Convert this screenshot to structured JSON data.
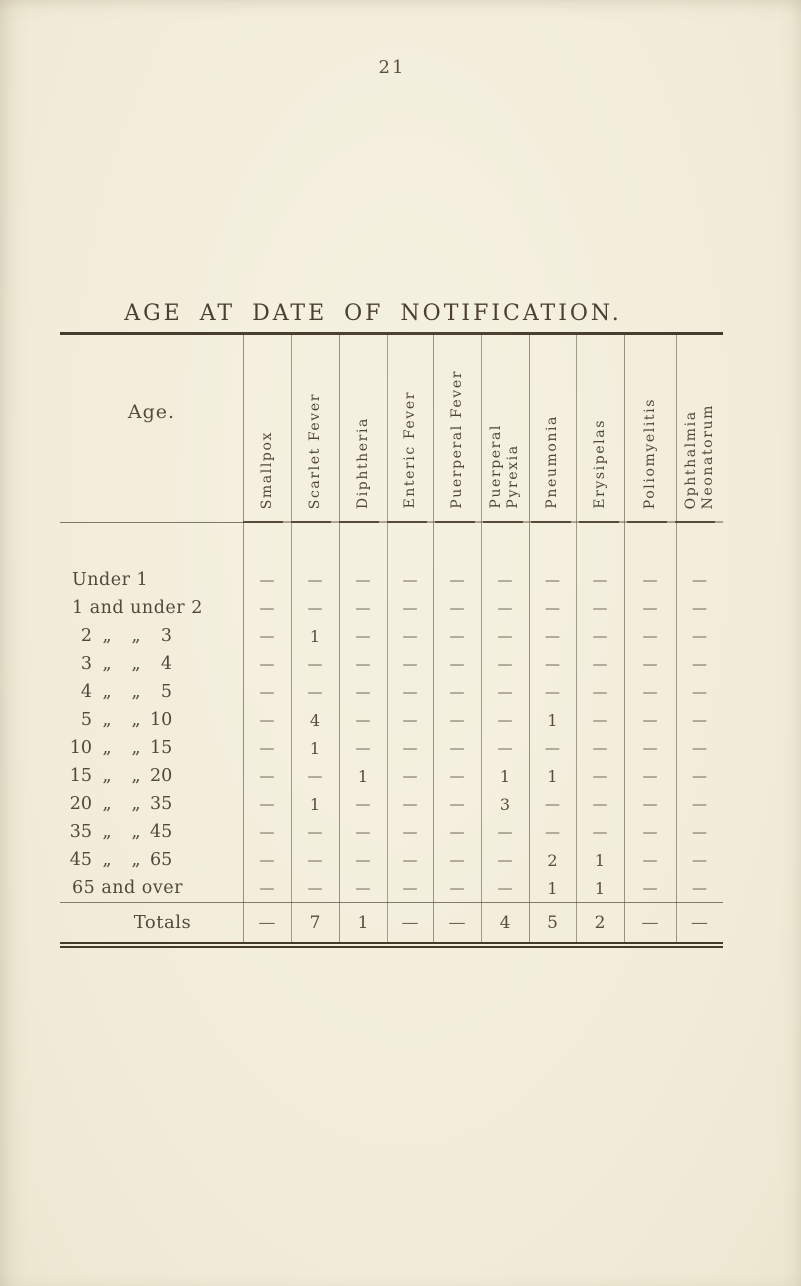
{
  "page_number": "21",
  "title": "AGE AT DATE OF NOTIFICATION.",
  "colors": {
    "paper": "#f2edda",
    "ink": "#4e4336",
    "rule": "#443a2c"
  },
  "table": {
    "age_header": "Age.",
    "dash": "—",
    "columns": [
      {
        "id": "smallpox",
        "lines": [
          "Smallpox"
        ]
      },
      {
        "id": "scarlet-fever",
        "lines": [
          "Scarlet Fever"
        ]
      },
      {
        "id": "diphtheria",
        "lines": [
          "Diphtheria"
        ]
      },
      {
        "id": "enteric-fever",
        "lines": [
          "Enteric Fever"
        ]
      },
      {
        "id": "puerperal-fever",
        "lines": [
          "Puerperal Fever"
        ]
      },
      {
        "id": "puerperal-pyrexia",
        "lines": [
          "Puerperal",
          "Pyrexia"
        ]
      },
      {
        "id": "pneumonia",
        "lines": [
          "Pneumonia"
        ]
      },
      {
        "id": "erysipelas",
        "lines": [
          "Erysipelas"
        ]
      },
      {
        "id": "poliomyelitis",
        "lines": [
          "Poliomyelitis"
        ]
      },
      {
        "id": "ophthalmia-neonatorum",
        "lines": [
          "Ophthalmia",
          "Neonatorum"
        ]
      }
    ],
    "rows": [
      {
        "age": [
          "Under 1"
        ],
        "values": [
          "—",
          "—",
          "—",
          "—",
          "—",
          "—",
          "—",
          "—",
          "—",
          "—"
        ]
      },
      {
        "age": [
          "1 and under 2"
        ],
        "values": [
          "—",
          "—",
          "—",
          "—",
          "—",
          "—",
          "—",
          "—",
          "—",
          "—"
        ]
      },
      {
        "age": [
          "2",
          "„",
          "„",
          "3"
        ],
        "values": [
          "—",
          "1",
          "—",
          "—",
          "—",
          "—",
          "—",
          "—",
          "—",
          "—"
        ]
      },
      {
        "age": [
          "3",
          "„",
          "„",
          "4"
        ],
        "values": [
          "—",
          "—",
          "—",
          "—",
          "—",
          "—",
          "—",
          "—",
          "—",
          "—"
        ]
      },
      {
        "age": [
          "4",
          "„",
          "„",
          "5"
        ],
        "values": [
          "—",
          "—",
          "—",
          "—",
          "—",
          "—",
          "—",
          "—",
          "—",
          "—"
        ]
      },
      {
        "age": [
          "5",
          "„",
          "„",
          "10"
        ],
        "values": [
          "—",
          "4",
          "—",
          "—",
          "—",
          "—",
          "1",
          "—",
          "—",
          "—"
        ]
      },
      {
        "age": [
          "10",
          "„",
          "„",
          "15"
        ],
        "values": [
          "—",
          "1",
          "—",
          "—",
          "—",
          "—",
          "—",
          "—",
          "—",
          "—"
        ]
      },
      {
        "age": [
          "15",
          "„",
          "„",
          "20"
        ],
        "values": [
          "—",
          "—",
          "1",
          "—",
          "—",
          "1",
          "1",
          "—",
          "—",
          "—"
        ]
      },
      {
        "age": [
          "20",
          "„",
          "„",
          "35"
        ],
        "values": [
          "—",
          "1",
          "—",
          "—",
          "—",
          "3",
          "—",
          "—",
          "—",
          "—"
        ]
      },
      {
        "age": [
          "35",
          "„",
          "„",
          "45"
        ],
        "values": [
          "—",
          "—",
          "—",
          "—",
          "—",
          "—",
          "—",
          "—",
          "—",
          "—"
        ]
      },
      {
        "age": [
          "45",
          "„",
          "„",
          "65"
        ],
        "values": [
          "—",
          "—",
          "—",
          "—",
          "—",
          "—",
          "2",
          "1",
          "—",
          "—"
        ]
      },
      {
        "age": [
          "65 and over"
        ],
        "values": [
          "—",
          "—",
          "—",
          "—",
          "—",
          "—",
          "1",
          "1",
          "—",
          "—"
        ]
      }
    ],
    "totals": {
      "label": "Totals",
      "values": [
        "—",
        "7",
        "1",
        "—",
        "—",
        "4",
        "5",
        "2",
        "—",
        "—"
      ]
    }
  }
}
